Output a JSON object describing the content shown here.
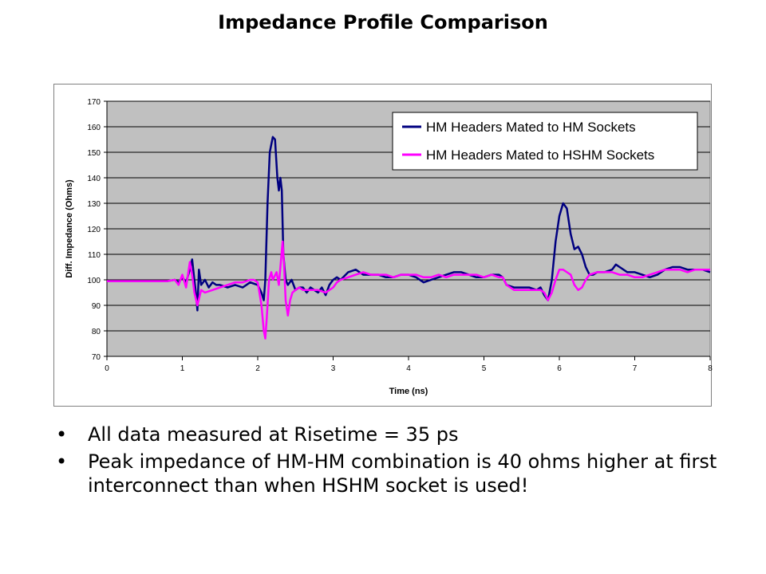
{
  "slide": {
    "title": "Impedance Profile Comparison",
    "bullet_symbol": "•",
    "bullets": [
      "All data measured at Risetime = 35 ps",
      "Peak impedance of HM-HM combination is 40 ohms higher at first interconnect than when HSHM socket is used!"
    ]
  },
  "chart_data": {
    "type": "line",
    "title": "",
    "xlabel": "Time (ns)",
    "ylabel": "Diff. Impedance (Ohms)",
    "xlim": [
      0,
      8
    ],
    "ylim": [
      70,
      170
    ],
    "x_ticks": [
      0,
      1,
      2,
      3,
      4,
      5,
      6,
      7,
      8
    ],
    "y_ticks": [
      70,
      80,
      90,
      100,
      110,
      120,
      130,
      140,
      150,
      160,
      170
    ],
    "grid": true,
    "plot_background": "#c0c0c0",
    "legend_position": "top-right",
    "series": [
      {
        "name": "HM Headers Mated to HM Sockets",
        "color": "#000080",
        "x": [
          0,
          0.8,
          0.9,
          0.95,
          1.0,
          1.05,
          1.1,
          1.13,
          1.16,
          1.18,
          1.2,
          1.22,
          1.25,
          1.3,
          1.35,
          1.4,
          1.45,
          1.5,
          1.6,
          1.7,
          1.8,
          1.9,
          2.0,
          2.05,
          2.08,
          2.1,
          2.13,
          2.16,
          2.2,
          2.23,
          2.26,
          2.28,
          2.3,
          2.32,
          2.34,
          2.37,
          2.4,
          2.45,
          2.5,
          2.55,
          2.6,
          2.65,
          2.7,
          2.75,
          2.8,
          2.85,
          2.9,
          2.95,
          3.0,
          3.05,
          3.1,
          3.2,
          3.3,
          3.4,
          3.5,
          3.6,
          3.7,
          3.8,
          3.9,
          4.0,
          4.1,
          4.2,
          4.3,
          4.4,
          4.5,
          4.6,
          4.7,
          4.8,
          4.9,
          5.0,
          5.1,
          5.2,
          5.25,
          5.3,
          5.4,
          5.5,
          5.6,
          5.7,
          5.75,
          5.8,
          5.85,
          5.9,
          5.95,
          6.0,
          6.05,
          6.1,
          6.15,
          6.2,
          6.25,
          6.3,
          6.35,
          6.4,
          6.45,
          6.5,
          6.6,
          6.7,
          6.75,
          6.8,
          6.9,
          7.0,
          7.1,
          7.2,
          7.3,
          7.4,
          7.5,
          7.6,
          7.7,
          7.8,
          7.9,
          8.0
        ],
        "values": [
          99.5,
          99.5,
          100,
          99,
          101,
          99,
          104,
          108,
          100,
          95,
          88,
          104,
          98,
          100,
          97,
          99,
          98,
          98,
          97,
          98,
          97,
          99,
          98,
          95,
          92,
          100,
          130,
          150,
          156,
          155,
          140,
          135,
          140,
          135,
          110,
          100,
          98,
          100,
          96,
          97,
          97,
          95,
          97,
          96,
          95,
          97,
          94,
          98,
          100,
          101,
          100,
          103,
          104,
          102,
          102,
          102,
          101,
          101,
          102,
          102,
          101,
          99,
          100,
          101,
          102,
          103,
          103,
          102,
          101,
          101,
          102,
          102,
          101,
          98,
          97,
          97,
          97,
          96,
          97,
          94,
          92,
          100,
          115,
          125,
          130,
          128,
          118,
          112,
          113,
          110,
          105,
          102,
          102,
          103,
          103,
          104,
          106,
          105,
          103,
          103,
          102,
          101,
          102,
          104,
          105,
          105,
          104,
          104,
          104,
          103
        ]
      },
      {
        "name": "HM Headers Mated to HSHM Sockets",
        "color": "#ff00ff",
        "x": [
          0,
          0.8,
          0.9,
          0.95,
          1.0,
          1.05,
          1.1,
          1.13,
          1.16,
          1.2,
          1.25,
          1.3,
          1.4,
          1.5,
          1.6,
          1.7,
          1.8,
          1.9,
          1.95,
          2.0,
          2.05,
          2.08,
          2.1,
          2.12,
          2.15,
          2.18,
          2.2,
          2.25,
          2.28,
          2.3,
          2.33,
          2.35,
          2.37,
          2.4,
          2.43,
          2.46,
          2.5,
          2.55,
          2.6,
          2.7,
          2.8,
          2.9,
          3.0,
          3.05,
          3.1,
          3.2,
          3.3,
          3.4,
          3.5,
          3.6,
          3.7,
          3.8,
          3.9,
          4.0,
          4.1,
          4.2,
          4.3,
          4.4,
          4.5,
          4.6,
          4.7,
          4.8,
          4.9,
          5.0,
          5.1,
          5.2,
          5.25,
          5.3,
          5.4,
          5.5,
          5.6,
          5.7,
          5.75,
          5.8,
          5.85,
          5.9,
          5.95,
          6.0,
          6.05,
          6.1,
          6.15,
          6.2,
          6.25,
          6.3,
          6.35,
          6.4,
          6.5,
          6.6,
          6.7,
          6.8,
          6.9,
          7.0,
          7.1,
          7.2,
          7.3,
          7.4,
          7.5,
          7.6,
          7.7,
          7.8,
          7.9,
          8.0
        ],
        "values": [
          99.5,
          99.5,
          100,
          98,
          102,
          97,
          107,
          102,
          95,
          90,
          96,
          95,
          96,
          97,
          98,
          99,
          99,
          100,
          100,
          99,
          90,
          80,
          77,
          85,
          100,
          103,
          100,
          103,
          98,
          105,
          115,
          105,
          92,
          86,
          92,
          95,
          96,
          97,
          96,
          96,
          96,
          95,
          97,
          99,
          100,
          101,
          102,
          103,
          102,
          102,
          102,
          101,
          102,
          102,
          102,
          101,
          101,
          102,
          101,
          102,
          102,
          102,
          102,
          101,
          102,
          101,
          101,
          98,
          96,
          96,
          96,
          96,
          96,
          95,
          92,
          95,
          100,
          104,
          104,
          103,
          102,
          98,
          96,
          97,
          100,
          102,
          103,
          103,
          103,
          102,
          102,
          101,
          101,
          102,
          103,
          104,
          104,
          104,
          103,
          104,
          104,
          104
        ]
      }
    ]
  }
}
